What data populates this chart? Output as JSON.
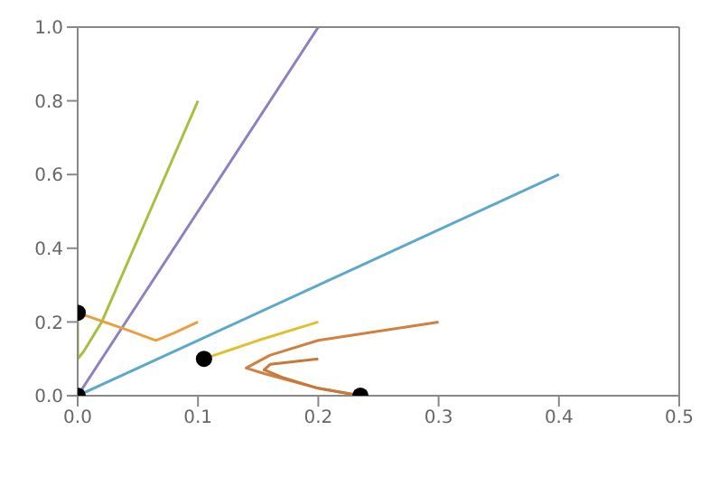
{
  "chart_data": {
    "type": "line",
    "xlim": [
      0,
      0.5
    ],
    "ylim": [
      0,
      1
    ],
    "xticks": [
      {
        "value": 0,
        "label": "0.0"
      },
      0.1,
      0.2,
      0.3,
      0.4,
      0.5
    ],
    "yticks": [
      {
        "value": 0,
        "label": "0.0"
      },
      0.2,
      0.4,
      0.6,
      0.8,
      {
        "value": 1,
        "label": "1.0"
      }
    ],
    "grid": false,
    "legend": false,
    "series": [
      {
        "color": "#a8c040",
        "x": [
          0.1,
          0.06,
          0.02,
          0.005,
          0,
          0
        ],
        "values": [
          0.8,
          0.5,
          0.2,
          0.12,
          0.1,
          0.225
        ]
      },
      {
        "color": "#9080c0",
        "x": [
          0.2,
          0.1,
          0.05,
          0
        ],
        "values": [
          1.0,
          0.5,
          0.25,
          0
        ]
      },
      {
        "color": "#5ea8c8",
        "x": [
          0.4,
          0.2,
          0.1,
          0
        ],
        "values": [
          0.6,
          0.3,
          0.15,
          0
        ]
      },
      {
        "color": "#e8a040",
        "x": [
          0.1,
          0.08,
          0.065,
          0.04,
          0
        ],
        "values": [
          0.2,
          0.17,
          0.15,
          0.18,
          0.225
        ]
      },
      {
        "color": "#e0c030",
        "x": [
          0.2,
          0.15,
          0.105
        ],
        "values": [
          0.2,
          0.15,
          0.1
        ]
      },
      {
        "color": "#d08040",
        "x": [
          0.3,
          0.2,
          0.16,
          0.14,
          0.155,
          0.2,
          0.235
        ],
        "values": [
          0.2,
          0.15,
          0.11,
          0.075,
          0.06,
          0.02,
          0
        ]
      },
      {
        "color": "#c87838",
        "x": [
          0.2,
          0.16,
          0.155,
          0.17,
          0.2,
          0.235
        ],
        "values": [
          0.1,
          0.085,
          0.07,
          0.05,
          0.02,
          0
        ]
      },
      {
        "type": "scatter",
        "marker": "circle",
        "color": "#000000",
        "x": [
          0,
          0,
          0.105,
          0.235
        ],
        "values": [
          0,
          0.225,
          0.1,
          0
        ]
      }
    ]
  }
}
